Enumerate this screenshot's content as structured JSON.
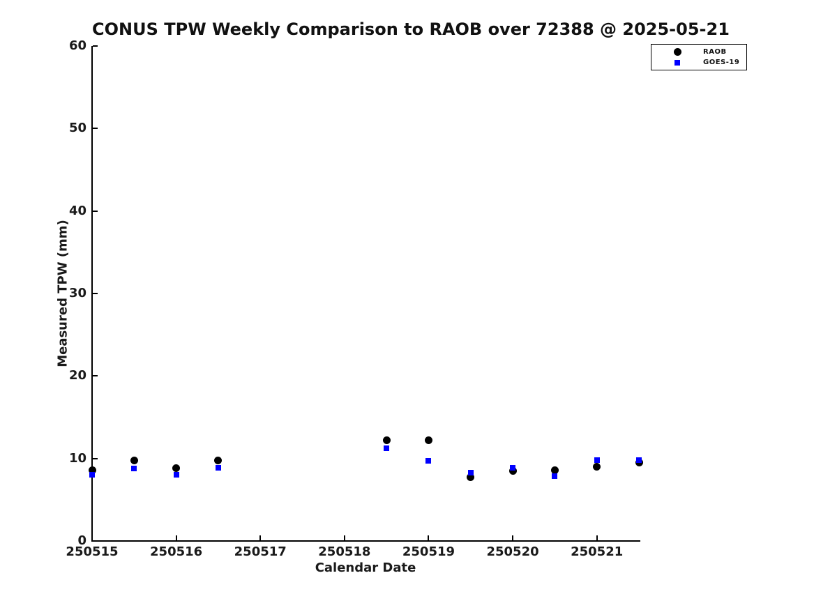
{
  "title": "CONUS TPW Weekly Comparison to RAOB over 72388 @ 2025-05-21",
  "chart_data": {
    "type": "scatter",
    "title": "CONUS TPW Weekly Comparison to RAOB over 72388 @ 2025-05-21",
    "xlabel": "Calendar Date",
    "ylabel": "Measured TPW (mm)",
    "grid": false,
    "background": "#ffffff",
    "x_axis": {
      "start": 250515,
      "end": 250521.5,
      "tick_values": [
        250515,
        250516,
        250517,
        250518,
        250519,
        250520,
        250521
      ],
      "tick_labels": [
        "250515",
        "250516",
        "250517",
        "250518",
        "250519",
        "250520",
        "250521"
      ]
    },
    "y_axis": {
      "min": 0,
      "max": 60,
      "ticks": [
        0,
        10,
        20,
        30,
        40,
        50,
        60
      ],
      "tick_labels": [
        "0",
        "10",
        "20",
        "30",
        "40",
        "50",
        "60"
      ]
    },
    "legend": {
      "position": "top-right-outside",
      "entries": [
        {
          "label": "RAOB",
          "marker": "circle",
          "color": "#000000"
        },
        {
          "label": "GOES-19",
          "marker": "square",
          "color": "#0000ff"
        }
      ]
    },
    "series": [
      {
        "name": "RAOB",
        "marker": "circle",
        "color": "#000000",
        "marker_size": 11,
        "points": [
          {
            "date": 250515.0,
            "tpw_mm": 8.6
          },
          {
            "date": 250515.5,
            "tpw_mm": 9.8
          },
          {
            "date": 250516.0,
            "tpw_mm": 8.8
          },
          {
            "date": 250516.5,
            "tpw_mm": 9.8
          },
          {
            "date": 250518.5,
            "tpw_mm": 12.2
          },
          {
            "date": 250519.0,
            "tpw_mm": 12.2
          },
          {
            "date": 250519.5,
            "tpw_mm": 7.7
          },
          {
            "date": 250520.0,
            "tpw_mm": 8.5
          },
          {
            "date": 250520.5,
            "tpw_mm": 8.6
          },
          {
            "date": 250521.0,
            "tpw_mm": 9.0
          },
          {
            "date": 250521.5,
            "tpw_mm": 9.5
          }
        ]
      },
      {
        "name": "GOES-19",
        "marker": "square",
        "color": "#0000ff",
        "marker_size": 8,
        "points": [
          {
            "date": 250515.0,
            "tpw_mm": 8.0
          },
          {
            "date": 250515.5,
            "tpw_mm": 8.8
          },
          {
            "date": 250516.0,
            "tpw_mm": 8.0
          },
          {
            "date": 250516.5,
            "tpw_mm": 8.9
          },
          {
            "date": 250518.5,
            "tpw_mm": 11.2
          },
          {
            "date": 250519.0,
            "tpw_mm": 9.7
          },
          {
            "date": 250519.5,
            "tpw_mm": 8.3
          },
          {
            "date": 250520.0,
            "tpw_mm": 8.9
          },
          {
            "date": 250520.5,
            "tpw_mm": 7.9
          },
          {
            "date": 250521.0,
            "tpw_mm": 9.8
          },
          {
            "date": 250521.5,
            "tpw_mm": 9.8
          }
        ]
      }
    ]
  }
}
